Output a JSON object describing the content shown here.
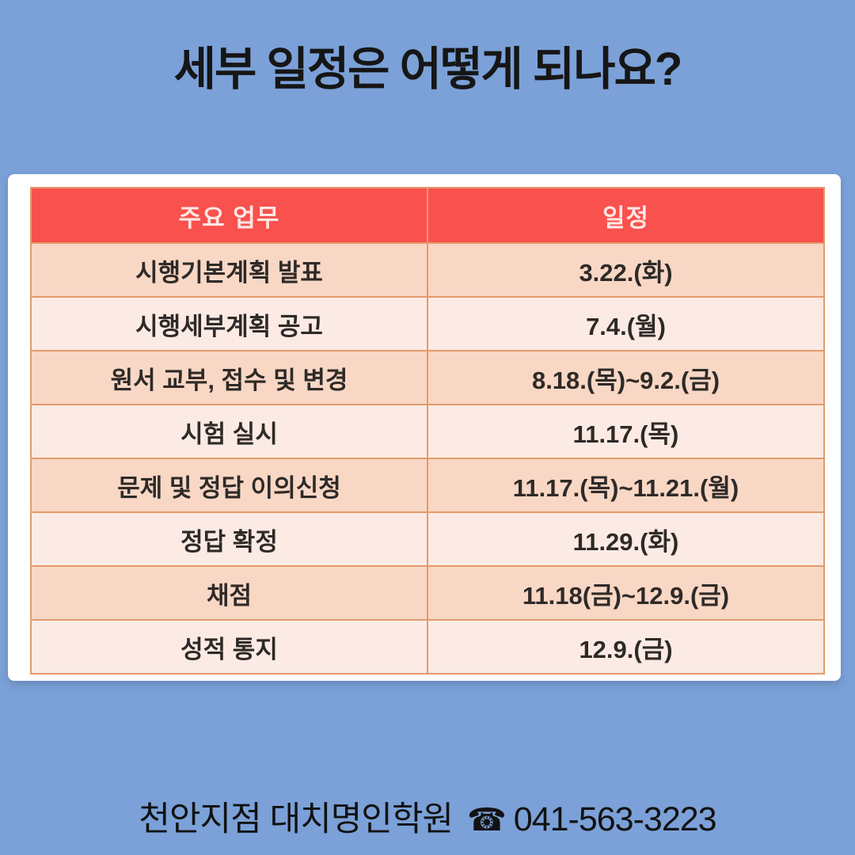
{
  "page": {
    "title": "세부 일정은 어떻게 되나요?"
  },
  "table": {
    "headers": [
      "주요 업무",
      "일정"
    ],
    "rows": [
      [
        "시행기본계획 발표",
        "3.22.(화)"
      ],
      [
        "시행세부계획 공고",
        "7.4.(월)"
      ],
      [
        "원서 교부, 접수 및 변경",
        "8.18.(목)~9.2.(금)"
      ],
      [
        "시험 실시",
        "11.17.(목)"
      ],
      [
        "문제 및 정답 이의신청",
        "11.17.(목)~11.21.(월)"
      ],
      [
        "정답 확정",
        "11.29.(화)"
      ],
      [
        "채점",
        "11.18(금)~12.9.(금)"
      ],
      [
        "성적 통지",
        "12.9.(금)"
      ]
    ]
  },
  "footer": {
    "academy": "천안지점 대치명인학원",
    "phone_icon_glyph": "☎",
    "phone": "041-563-3223"
  },
  "colors": {
    "background": "#7ba1d8",
    "card": "#ffffff",
    "header_bg": "#f9514d",
    "header_text": "#ffe6e3",
    "row_odd": "#f8d7c5",
    "row_even": "#fcebe4",
    "border": "#e39a6b",
    "body_text": "#2e2a28"
  }
}
